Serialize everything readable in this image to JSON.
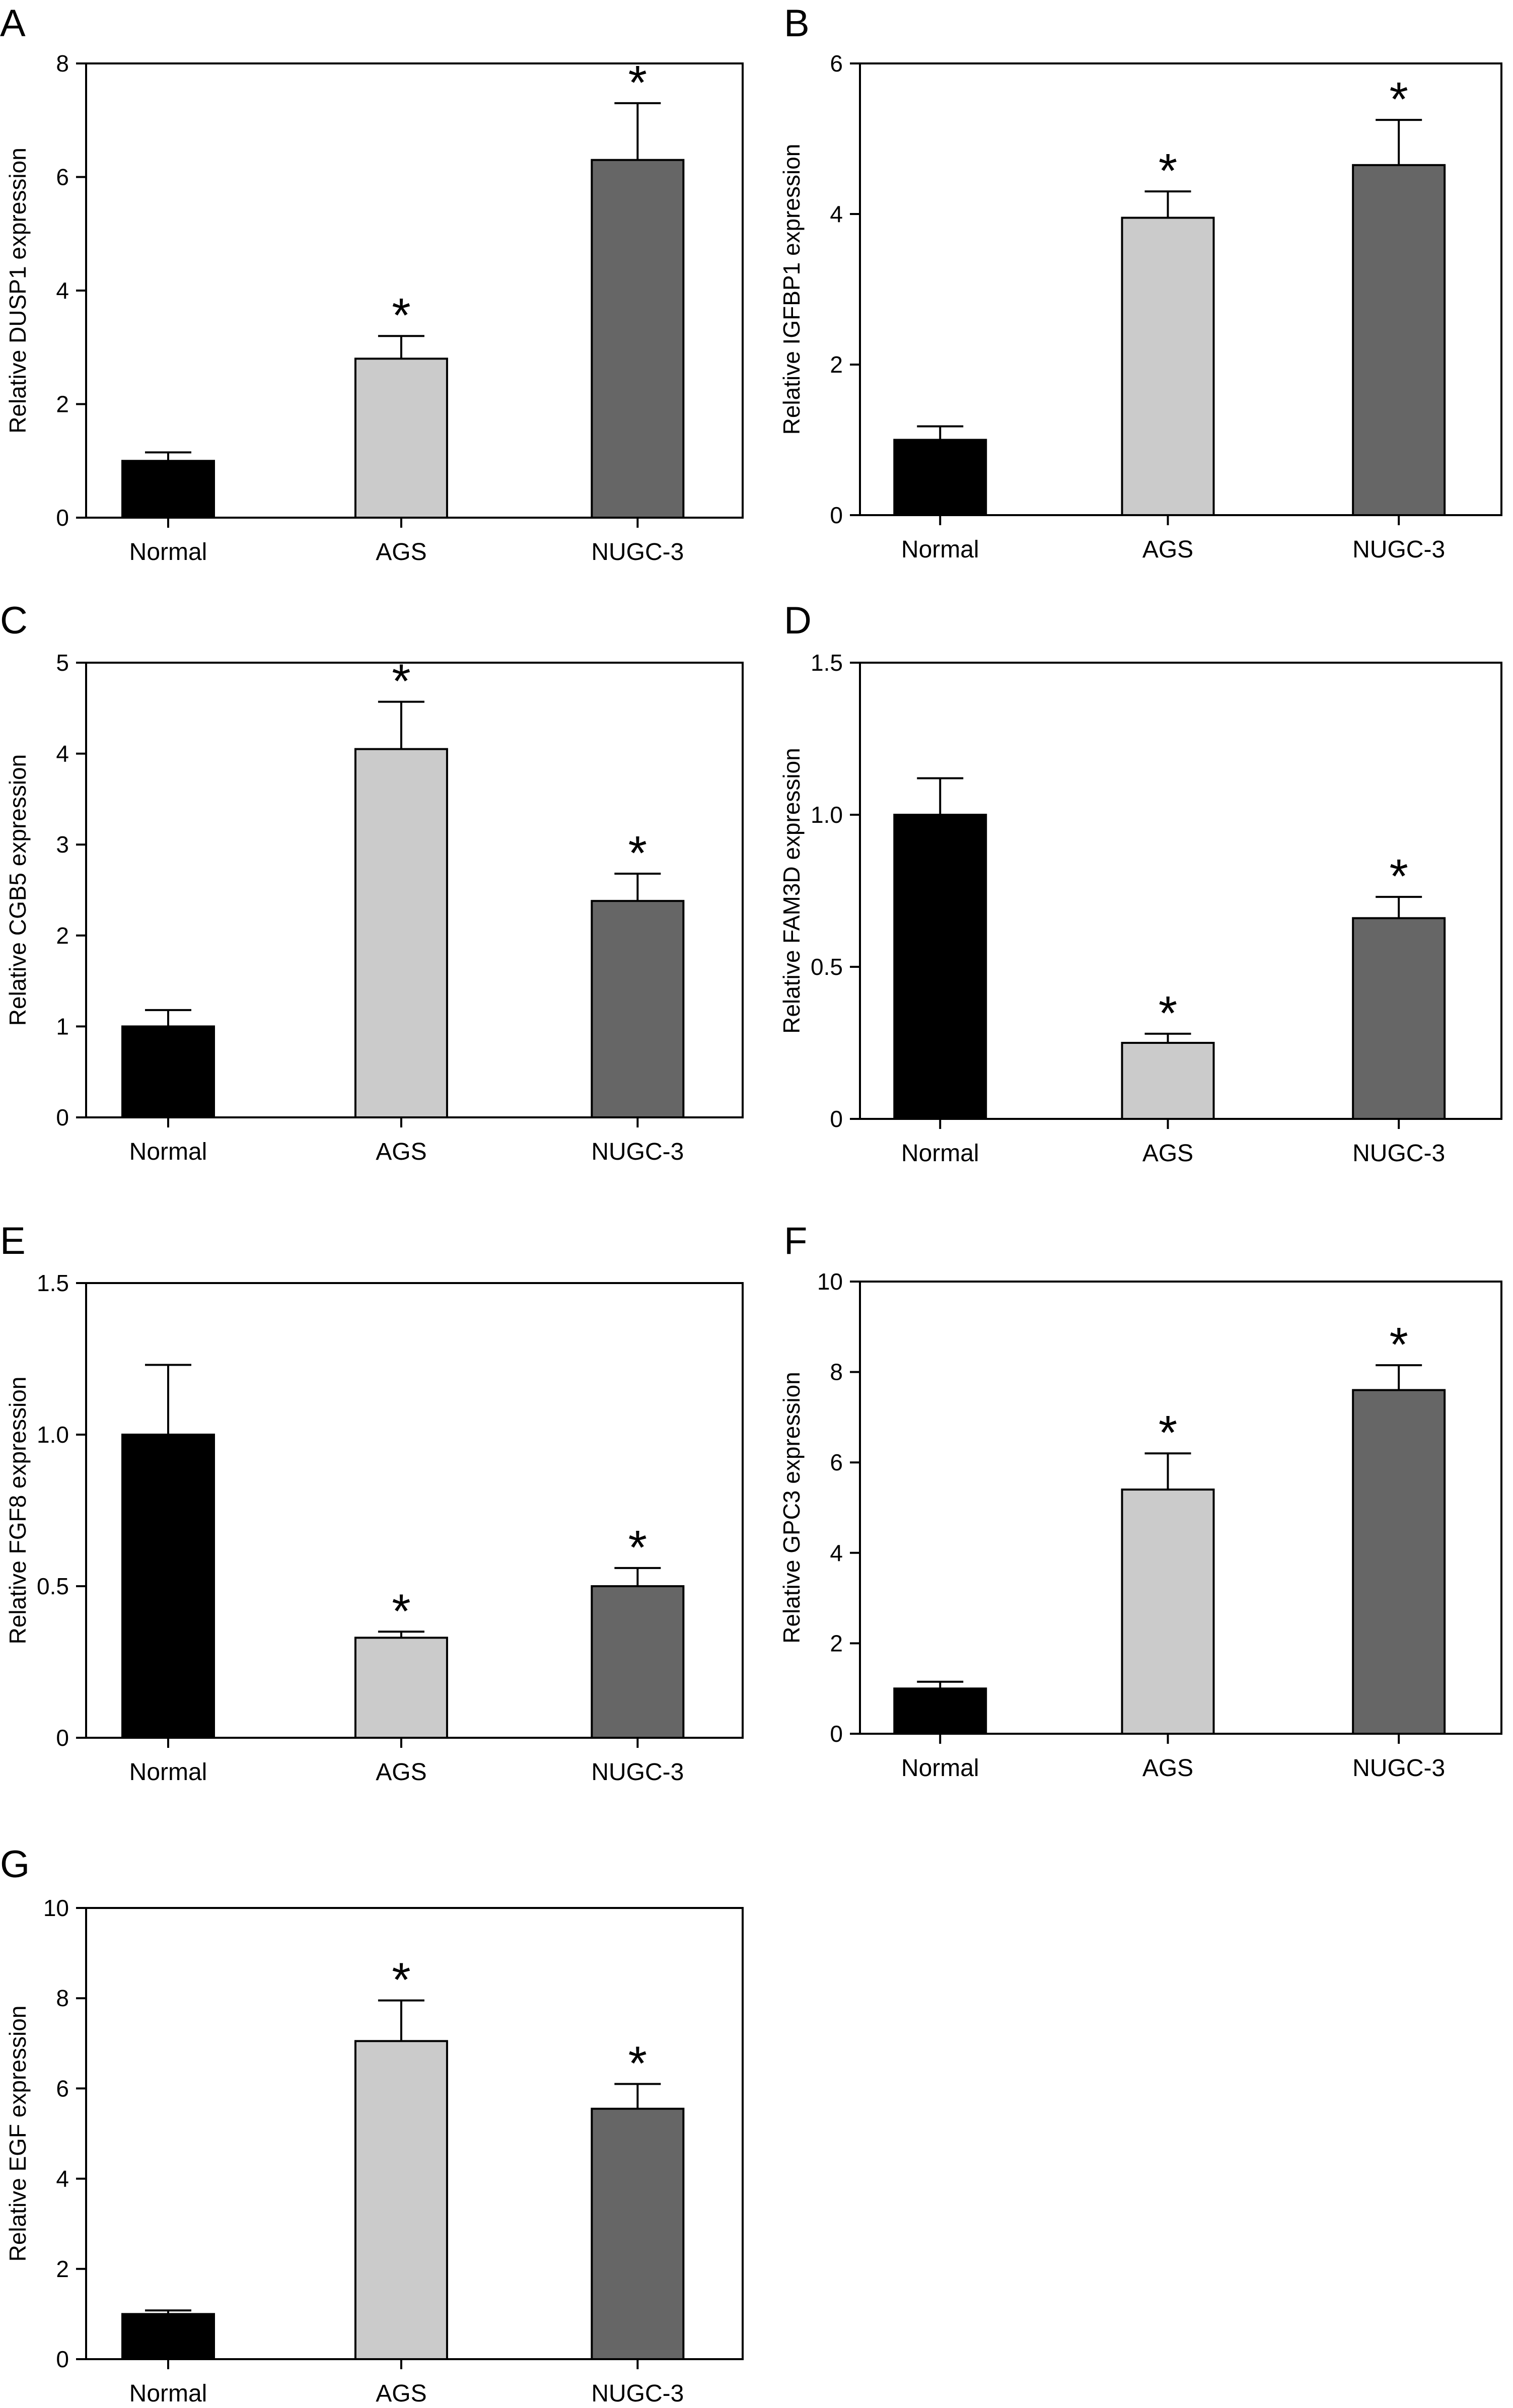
{
  "colors": {
    "Normal": "#000000",
    "AGS": "#cbcbcb",
    "NUGC-3": "#666666"
  },
  "chart_data": [
    {
      "panel": "A",
      "type": "bar",
      "categories": [
        "Normal",
        "AGS",
        "NUGC-3"
      ],
      "values": [
        1.0,
        2.8,
        6.3
      ],
      "errors": [
        0.15,
        0.4,
        1.0
      ],
      "significant": [
        "",
        "*",
        "*"
      ],
      "ylabel": "Relative DUSP1 expression",
      "ylim": [
        0,
        8
      ],
      "yticks": [
        0,
        2,
        4,
        6,
        8
      ]
    },
    {
      "panel": "B",
      "type": "bar",
      "categories": [
        "Normal",
        "AGS",
        "NUGC-3"
      ],
      "values": [
        1.0,
        3.95,
        4.65
      ],
      "errors": [
        0.18,
        0.35,
        0.6
      ],
      "significant": [
        "",
        "*",
        "*"
      ],
      "ylabel": "Relative IGFBP1 expression",
      "ylim": [
        0,
        6
      ],
      "yticks": [
        0,
        2,
        4,
        6
      ]
    },
    {
      "panel": "C",
      "type": "bar",
      "categories": [
        "Normal",
        "AGS",
        "NUGC-3"
      ],
      "values": [
        1.0,
        4.05,
        2.38
      ],
      "errors": [
        0.18,
        0.52,
        0.3
      ],
      "significant": [
        "",
        "*",
        "*"
      ],
      "ylabel": "Relative CGB5 expression",
      "ylim": [
        0,
        5
      ],
      "yticks": [
        0,
        1,
        2,
        3,
        4,
        5
      ]
    },
    {
      "panel": "D",
      "type": "bar",
      "categories": [
        "Normal",
        "AGS",
        "NUGC-3"
      ],
      "values": [
        1.0,
        0.25,
        0.66
      ],
      "errors": [
        0.12,
        0.03,
        0.07
      ],
      "significant": [
        "",
        "*",
        "*"
      ],
      "ylabel": "Relative FAM3D expression",
      "ylim": [
        0,
        1.5
      ],
      "yticks": [
        0,
        0.5,
        1.0,
        1.5
      ],
      "ytick_labels": [
        "0",
        "0.5",
        "1.0",
        "1.5"
      ]
    },
    {
      "panel": "E",
      "type": "bar",
      "categories": [
        "Normal",
        "AGS",
        "NUGC-3"
      ],
      "values": [
        1.0,
        0.33,
        0.5
      ],
      "errors": [
        0.23,
        0.02,
        0.06
      ],
      "significant": [
        "",
        "*",
        "*"
      ],
      "ylabel": "Relative FGF8 expression",
      "ylim": [
        0,
        1.5
      ],
      "yticks": [
        0,
        0.5,
        1.0,
        1.5
      ],
      "ytick_labels": [
        "0",
        "0.5",
        "1.0",
        "1.5"
      ]
    },
    {
      "panel": "F",
      "type": "bar",
      "categories": [
        "Normal",
        "AGS",
        "NUGC-3"
      ],
      "values": [
        1.0,
        5.4,
        7.6
      ],
      "errors": [
        0.15,
        0.8,
        0.55
      ],
      "significant": [
        "",
        "*",
        "*"
      ],
      "ylabel": "Relative GPC3 expression",
      "ylim": [
        0,
        10
      ],
      "yticks": [
        0,
        2,
        4,
        6,
        8,
        10
      ]
    },
    {
      "panel": "G",
      "type": "bar",
      "categories": [
        "Normal",
        "AGS",
        "NUGC-3"
      ],
      "values": [
        1.0,
        7.05,
        5.55
      ],
      "errors": [
        0.08,
        0.9,
        0.55
      ],
      "significant": [
        "",
        "*",
        "*"
      ],
      "ylabel": "Relative EGF expression",
      "ylim": [
        0,
        10
      ],
      "yticks": [
        0,
        2,
        4,
        6,
        8,
        10
      ]
    }
  ]
}
